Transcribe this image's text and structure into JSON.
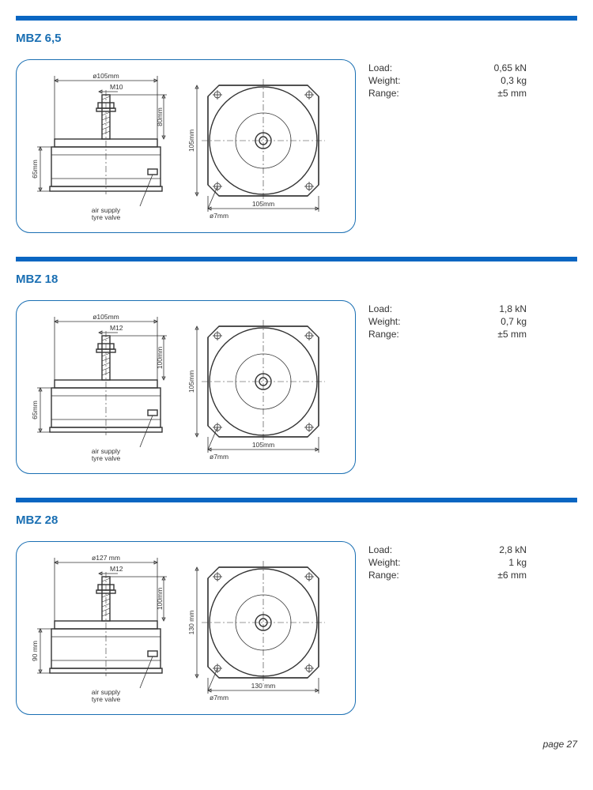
{
  "accent_color": "#1a6fb3",
  "bar_color": "#0a66c2",
  "page_number": "page 27",
  "products": [
    {
      "title": "MBZ 6,5",
      "dims": {
        "height": "65mm",
        "top_width": "ø105mm",
        "thread": "M10",
        "stud_height": "80mm",
        "plate_width": "105mm",
        "plate_height": "105mm",
        "hole": "ø7mm",
        "note1": "air supply",
        "note2": "tyre valve"
      },
      "specs": [
        {
          "label": "Load:",
          "value": "0,65 kN"
        },
        {
          "label": "Weight:",
          "value": "0,3 kg"
        },
        {
          "label": "Range:",
          "value": "±5 mm"
        }
      ]
    },
    {
      "title": "MBZ 18",
      "dims": {
        "height": "65mm",
        "top_width": "ø105mm",
        "thread": "M12",
        "stud_height": "100mm",
        "plate_width": "105mm",
        "plate_height": "105mm",
        "hole": "ø7mm",
        "note1": "air supply",
        "note2": "tyre valve"
      },
      "specs": [
        {
          "label": "Load:",
          "value": "1,8 kN"
        },
        {
          "label": "Weight:",
          "value": "0,7 kg"
        },
        {
          "label": "Range:",
          "value": "±5 mm"
        }
      ]
    },
    {
      "title": "MBZ 28",
      "dims": {
        "height": "90 mm",
        "top_width": "ø127 mm",
        "thread": "M12",
        "stud_height": "100mm",
        "plate_width": "130 mm",
        "plate_height": "130 mm",
        "hole": "ø7mm",
        "note1": "air supply",
        "note2": "tyre valve"
      },
      "specs": [
        {
          "label": "Load:",
          "value": "2,8 kN"
        },
        {
          "label": "Weight:",
          "value": "1 kg"
        },
        {
          "label": "Range:",
          "value": "±6 mm"
        }
      ]
    }
  ]
}
